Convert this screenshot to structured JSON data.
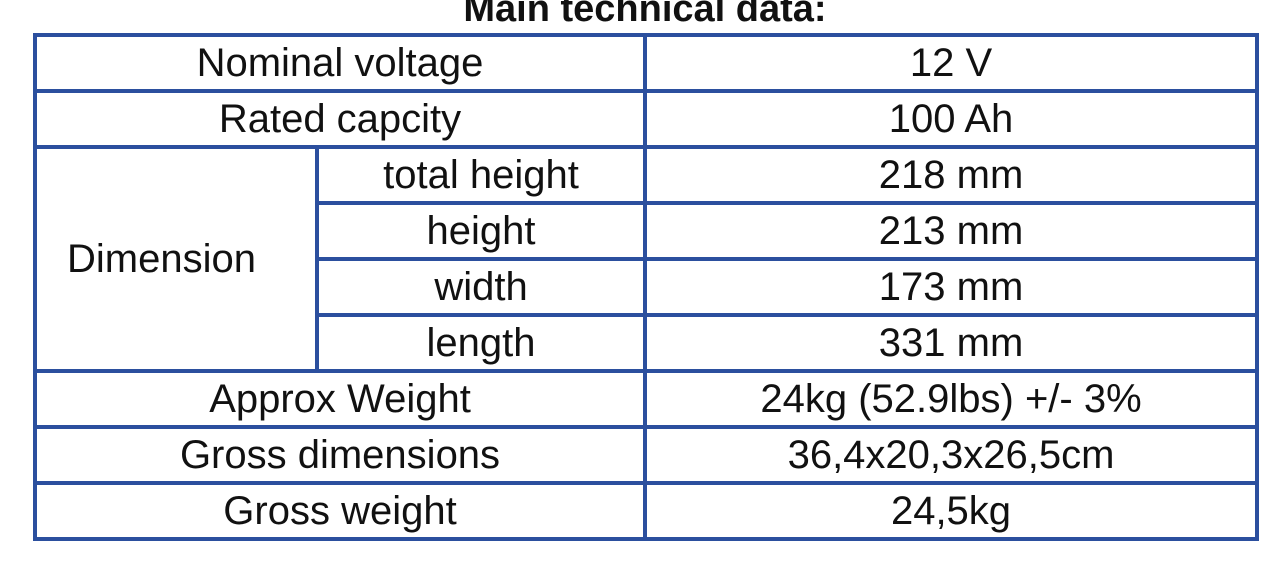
{
  "title": "Main technical data:",
  "table": {
    "rows": [
      {
        "label": "Nominal voltage",
        "value": "12 V"
      },
      {
        "label": "Rated capcity",
        "value": "100 Ah"
      },
      {
        "label": "Dimension",
        "subrows": [
          {
            "label": "total height",
            "value": "218 mm"
          },
          {
            "label": "height",
            "value": "213 mm"
          },
          {
            "label": "width",
            "value": "173 mm"
          },
          {
            "label": "length",
            "value": "331 mm"
          }
        ]
      },
      {
        "label": "Approx Weight",
        "value": "24kg (52.9lbs) +/- 3%"
      },
      {
        "label": "Gross dimensions",
        "value": "36,4x20,3x26,5cm"
      },
      {
        "label": "Gross weight",
        "value": "24,5kg"
      }
    ]
  }
}
